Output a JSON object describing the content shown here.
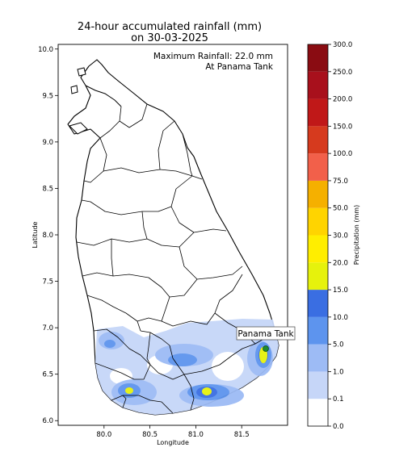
{
  "map": {
    "title_line1": "24-hour accumulated rainfall (mm)",
    "title_line2": "on 30-03-2025",
    "annotation_line1": "Maximum Rainfall: 22.0 mm",
    "annotation_line2": "At Panama Tank",
    "station_label": "Panama Tank",
    "xlabel": "Longitude",
    "ylabel": "Latitude",
    "x_ticks": [
      "80.0",
      "80.5",
      "81.0",
      "81.5"
    ],
    "y_ticks": [
      "10.0",
      "9.5",
      "9.0",
      "8.5",
      "8.0",
      "7.5",
      "7.0",
      "6.5",
      "6.0"
    ],
    "xlim": [
      79.5,
      82.0
    ],
    "ylim": [
      5.95,
      10.05
    ],
    "max_rainfall_mm": 22.0,
    "max_station": {
      "name": "Panama Tank",
      "lon": 81.78,
      "lat": 6.76
    }
  },
  "colorbar": {
    "label": "Precipitation (mm)",
    "levels": [
      "0.0",
      "0.1",
      "1.0",
      "5.0",
      "10.0",
      "15.0",
      "20.0",
      "30.0",
      "50.0",
      "75.0",
      "100.0",
      "150.0",
      "200.0",
      "250.0",
      "300.0"
    ],
    "colors": [
      "#ffffff",
      "#c6d6f8",
      "#9dbbf5",
      "#5d94ee",
      "#3a6ee2",
      "#e6f20c",
      "#ffee00",
      "#ffd400",
      "#f5b000",
      "#f2604a",
      "#d63a1e",
      "#c01818",
      "#a8101c",
      "#8a0c12",
      "#6a0606",
      "#000000"
    ]
  },
  "rain_colors": {
    "light": "#c6d6f8",
    "moderate": "#9dbbf5",
    "heavy": "#5d94ee",
    "very_heavy": "#3a6ee2",
    "yellow": "#e6f20c",
    "station_marker": "#1f8a2e"
  }
}
